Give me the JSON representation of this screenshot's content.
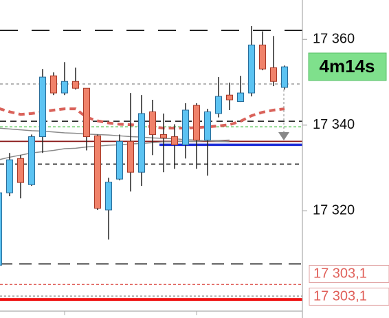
{
  "chart_data": {
    "type": "candlestick",
    "countdown": "4m14s",
    "ylim": [
      17296.1,
      17369.2
    ],
    "yticks": [
      {
        "value": 17360,
        "label": "17 360"
      },
      {
        "value": 17340,
        "label": "17 340"
      },
      {
        "value": 17320,
        "label": "17 320"
      }
    ],
    "up_color": "#5cc3f2",
    "down_color": "#f0826a",
    "open": [
      17307.3,
      17324.2,
      17332.2,
      17326.1,
      17337.3,
      17351.5,
      17347.5,
      17350.2,
      17348.6,
      17337.5,
      17320.2,
      17327.4,
      17336.2,
      17329.0,
      17343.1,
      17337.8,
      17337.3,
      17335.4,
      17344.6,
      17336.5,
      17342.7,
      17347.0,
      17345.5,
      17347.5,
      17358.7,
      17353.4,
      17348.8
    ],
    "high": [
      17324.2,
      17333.5,
      17333.0,
      17337.8,
      17353.1,
      17352.3,
      17354.7,
      17353.4,
      17348.6,
      17337.8,
      17327.7,
      17337.8,
      17347.5,
      17347.0,
      17345.9,
      17342.7,
      17340.2,
      17345.1,
      17345.1,
      17343.8,
      17351.2,
      17349.9,
      17351.5,
      17363.1,
      17361.9,
      17360.8,
      17353.9
    ],
    "low": [
      17307.3,
      17323.4,
      17322.9,
      17325.8,
      17333.5,
      17347.0,
      17347.0,
      17348.3,
      17334.1,
      17320.2,
      17313.3,
      17327.1,
      17324.5,
      17325.8,
      17333.0,
      17329.0,
      17329.8,
      17332.2,
      17329.8,
      17328.2,
      17341.8,
      17343.5,
      17345.4,
      17346.7,
      17352.8,
      17349.1,
      17348.3
    ],
    "close": [
      17324.2,
      17331.9,
      17326.6,
      17337.3,
      17351.2,
      17347.5,
      17350.2,
      17348.6,
      17337.3,
      17320.6,
      17326.7,
      17336.2,
      17329.0,
      17342.7,
      17337.8,
      17337.0,
      17335.4,
      17343.5,
      17336.5,
      17343.1,
      17346.7,
      17345.9,
      17347.5,
      17358.7,
      17353.1,
      17350.2,
      17353.6
    ],
    "series": [
      {
        "color": "#d9625a",
        "dash": "9,6",
        "width": 4,
        "values": [
          17343.9,
          17343.1,
          17342.5,
          17342.7,
          17343.1,
          17343.5,
          17343.8,
          17343.8,
          17341.8,
          17341.0,
          17340.5,
          17340.2,
          17340.1,
          17339.9,
          17339.6,
          17339.3,
          17339.3,
          17339.3,
          17339.4,
          17339.6,
          17339.8,
          17340.1,
          17340.9,
          17342.2,
          17343.0,
          17343.5,
          17343.8
        ]
      },
      {
        "color": "#8a8a8a",
        "dash": "none",
        "width": 1.5,
        "values": [
          17331.9,
          17332.5,
          17333.0,
          17333.5,
          17333.8,
          17334.1,
          17334.5,
          17334.6,
          17334.9,
          17335.1,
          17335.3,
          17335.4,
          17335.6,
          17335.7,
          17335.9,
          17336.1,
          17336.1,
          17336.2,
          17336.2,
          17336.4,
          17336.4,
          17336.5,
          null,
          null,
          null,
          null,
          null
        ]
      },
      {
        "color": "#8a8a8a",
        "dash": "none",
        "width": 1.5,
        "values": [
          17339.3,
          17339.1,
          17338.9,
          17338.7,
          17338.6,
          17338.4,
          17338.2,
          17338.1,
          17337.9,
          17337.8,
          17337.7,
          17337.5,
          17337.3,
          17337.2,
          17337.0,
          17336.9,
          17336.8,
          17336.6,
          17336.5,
          17336.3,
          17336.2,
          17336.1,
          null,
          null,
          null,
          null,
          null
        ]
      }
    ],
    "levels": [
      {
        "value": 17362.1,
        "color": "#111",
        "dash": "26,20",
        "width": 1.6,
        "start_index": 0
      },
      {
        "value": 17349.6,
        "color": "#888",
        "dash": "4,4",
        "width": 1.3,
        "start_index": 0
      },
      {
        "value": 17340.9,
        "color": "#111",
        "dash": "9,6",
        "width": 1.5,
        "start_index": 0
      },
      {
        "value": 17339.6,
        "color": "#3cbf3c",
        "dash": "4,3",
        "width": 1.3,
        "start_index": 0
      },
      {
        "value": 17336.2,
        "color": "#8b1a1a",
        "dash": "none",
        "width": 1.8,
        "start_index": 0
      },
      {
        "value": 17335.4,
        "color": "#1f2fd8",
        "dash": "none",
        "width": 3.5,
        "start_index": 15
      },
      {
        "value": 17330.9,
        "color": "#111",
        "dash": "6,5",
        "width": 1.5,
        "start_index": 0
      },
      {
        "value": 17307.6,
        "color": "#111",
        "dash": "18,10",
        "width": 1.6,
        "start_index": 0
      },
      {
        "value": 17302.8,
        "color": "#e0605a",
        "dash": "4,3",
        "width": 1.3,
        "start_index": 0
      },
      {
        "value": 17300.1,
        "color": "#888",
        "dash": "3,3",
        "width": 1.3,
        "start_index": 0
      },
      {
        "value": 17299.3,
        "color": "#ee1111",
        "dash": "none",
        "width": 4,
        "start_index": 0
      }
    ],
    "price_labels": [
      {
        "value": 17303.1,
        "label": "17 303,1"
      },
      {
        "value": 17303.1,
        "label": "17 303,1"
      }
    ]
  }
}
